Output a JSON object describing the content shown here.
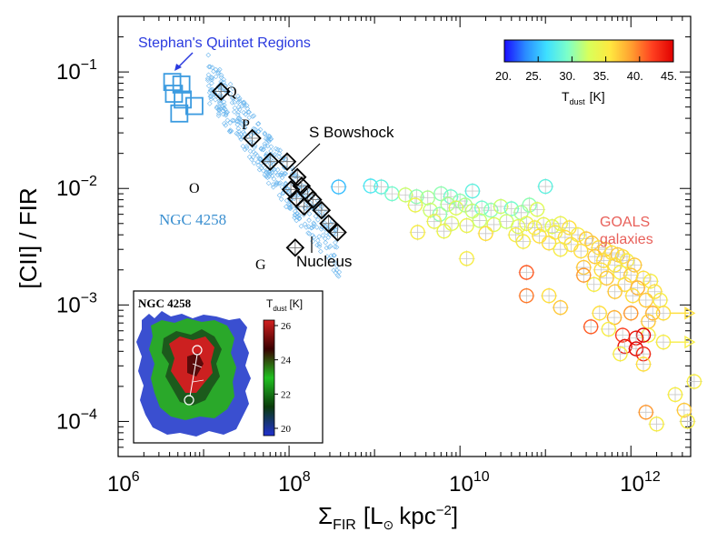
{
  "chart_data": {
    "type": "scatter",
    "x_scale": "log",
    "y_scale": "log",
    "xlim": [
      1000000,
      5000000000000
    ],
    "ylim": [
      5e-05,
      0.3
    ],
    "xlabel": "Σ",
    "xlabel_sub": "FIR",
    "xlabel_unit": "[L",
    "xlabel_unit_tail": "kpc",
    "xlabel_exp": "−2",
    "xlabel_close": "]",
    "ylabel": "[CII] / FIR",
    "x_ticks": [
      {
        "value": 1000000,
        "base": "10",
        "exp": "6"
      },
      {
        "value": 100000000,
        "base": "10",
        "exp": "8"
      },
      {
        "value": 10000000000,
        "base": "10",
        "exp": "10"
      },
      {
        "value": 1000000000000,
        "base": "10",
        "exp": "12"
      }
    ],
    "y_ticks": [
      {
        "value": 0.1,
        "base": "10",
        "exp": "−1"
      },
      {
        "value": 0.01,
        "base": "10",
        "exp": "−2"
      },
      {
        "value": 0.001,
        "base": "10",
        "exp": "−3"
      },
      {
        "value": 0.0001,
        "base": "10",
        "exp": "−4"
      }
    ],
    "colorbar": {
      "label": "T",
      "label_sub": "dust",
      "label_unit": "[K]",
      "range": [
        20,
        45
      ],
      "tick_labels": [
        "20.",
        "25.",
        "30.",
        "35.",
        "40.",
        "45."
      ],
      "colors": [
        "#1a0cff",
        "#2a8cff",
        "#3ee0ff",
        "#7dffc8",
        "#d9ff5a",
        "#ffe840",
        "#ffa030",
        "#ff4020",
        "#e00000"
      ]
    },
    "annotations": {
      "sq_title": "Stephan's Quintet Regions",
      "ngc_label": "NGC 4258",
      "goals_label_1": "GOALS",
      "goals_label_2": "galaxies",
      "bowshock_label": "S Bowshock",
      "nucleus_label": "Nucleus",
      "q_label": "Q",
      "p_label": "P",
      "o_label": "O",
      "g_label": "G"
    },
    "series": [
      {
        "name": "Stephan's Quintet Regions",
        "marker": "square",
        "color": "#3c9be0",
        "points": [
          [
            4300000,
            0.082
          ],
          [
            5500000,
            0.078
          ],
          [
            4500000,
            0.065
          ],
          [
            5700000,
            0.058
          ],
          [
            7800000,
            0.051
          ],
          [
            5200000,
            0.044
          ]
        ]
      },
      {
        "name": "NGC 4258 regions",
        "marker": "diamond",
        "color": "#000000",
        "points": [
          [
            16000000,
            0.068
          ],
          [
            37000000,
            0.027
          ],
          [
            60000000,
            0.017
          ],
          [
            95000000,
            0.017
          ],
          [
            125000000,
            0.0125
          ],
          [
            140000000,
            0.0105
          ],
          [
            105000000,
            0.0098
          ],
          [
            165000000,
            0.009
          ],
          [
            122000000,
            0.0082
          ],
          [
            190000000,
            0.008
          ],
          [
            150000000,
            0.007
          ],
          [
            240000000,
            0.0065
          ],
          [
            290000000,
            0.005
          ],
          [
            370000000,
            0.0042
          ],
          [
            118000000,
            0.0031
          ]
        ]
      },
      {
        "name": "GOALS galaxies",
        "marker": "circle",
        "points": [
          [
            380000000,
            0.0103,
            25
          ],
          [
            900000000,
            0.0105,
            27
          ],
          [
            1200000000,
            0.0103,
            28
          ],
          [
            1600000000,
            0.009,
            29
          ],
          [
            2300000000,
            0.0088,
            32
          ],
          [
            3100000000,
            0.0085,
            30
          ],
          [
            4200000000,
            0.0083,
            31
          ],
          [
            6000000000,
            0.009,
            30
          ],
          [
            7800000000,
            0.0085,
            29
          ],
          [
            14000000000,
            0.0095,
            28
          ],
          [
            10000000000,
            0.0078,
            30
          ],
          [
            3000000000,
            0.0072,
            34
          ],
          [
            4500000000,
            0.0065,
            32
          ],
          [
            5800000000,
            0.006,
            30
          ],
          [
            7200000000,
            0.0073,
            31
          ],
          [
            9000000000,
            0.0068,
            33
          ],
          [
            11500000000,
            0.0072,
            31
          ],
          [
            14000000000,
            0.0064,
            32
          ],
          [
            18000000000,
            0.0068,
            29
          ],
          [
            23000000000,
            0.0065,
            30
          ],
          [
            30000000000,
            0.007,
            32
          ],
          [
            40000000000,
            0.0067,
            29
          ],
          [
            52000000000,
            0.0062,
            31
          ],
          [
            65000000000,
            0.0072,
            30
          ],
          [
            80000000000,
            0.0066,
            33
          ],
          [
            100000000000,
            0.0104,
            28
          ],
          [
            5000000000,
            0.0052,
            34
          ],
          [
            8000000000,
            0.005,
            33
          ],
          [
            12000000000,
            0.0048,
            34
          ],
          [
            17000000000,
            0.0053,
            32
          ],
          [
            25000000000,
            0.0049,
            33
          ],
          [
            35000000000,
            0.0052,
            32
          ],
          [
            48000000000,
            0.0047,
            33
          ],
          [
            60000000000,
            0.005,
            34
          ],
          [
            75000000000,
            0.0046,
            35
          ],
          [
            95000000000,
            0.0049,
            34
          ],
          [
            120000000000,
            0.0047,
            33
          ],
          [
            150000000000,
            0.005,
            34
          ],
          [
            190000000000,
            0.0046,
            36
          ],
          [
            3200000000,
            0.0042,
            35
          ],
          [
            6500000000,
            0.0043,
            34
          ],
          [
            20000000000,
            0.0041,
            36
          ],
          [
            45000000000,
            0.004,
            35
          ],
          [
            85000000000,
            0.0039,
            36
          ],
          [
            130000000000,
            0.0042,
            35
          ],
          [
            170000000000,
            0.0038,
            36
          ],
          [
            240000000000,
            0.004,
            35
          ],
          [
            300000000000,
            0.0037,
            37
          ],
          [
            55000000000,
            0.0035,
            35
          ],
          [
            110000000000,
            0.0034,
            36
          ],
          [
            200000000000,
            0.0033,
            36
          ],
          [
            350000000000,
            0.0034,
            37
          ],
          [
            420000000000,
            0.0031,
            36
          ],
          [
            500000000000,
            0.003,
            37
          ],
          [
            150000000000,
            0.003,
            35
          ],
          [
            260000000000,
            0.0029,
            36
          ],
          [
            600000000000,
            0.0028,
            36
          ],
          [
            700000000000,
            0.0027,
            37
          ],
          [
            800000000000,
            0.0026,
            36
          ],
          [
            380000000000,
            0.0026,
            37
          ],
          [
            480000000000,
            0.0024,
            36
          ],
          [
            900000000000,
            0.0024,
            35
          ],
          [
            1100000000000,
            0.0022,
            37
          ],
          [
            650000000000,
            0.0022,
            36
          ],
          [
            12000000000,
            0.0025,
            35
          ],
          [
            280000000000,
            0.0021,
            37
          ],
          [
            450000000000,
            0.002,
            36
          ],
          [
            750000000000,
            0.0019,
            35
          ],
          [
            1000000000000,
            0.0018,
            37
          ],
          [
            1400000000000,
            0.0017,
            36
          ],
          [
            1700000000000,
            0.0016,
            35
          ],
          [
            520000000000,
            0.0017,
            37
          ],
          [
            850000000000,
            0.0015,
            36
          ],
          [
            1200000000000,
            0.0014,
            38
          ],
          [
            1900000000000,
            0.0013,
            36
          ],
          [
            370000000000,
            0.0015,
            35
          ],
          [
            650000000000,
            0.0013,
            37
          ],
          [
            1050000000000,
            0.0012,
            36
          ],
          [
            1500000000000,
            0.0011,
            37
          ],
          [
            2200000000000,
            0.0011,
            35
          ],
          [
            60000000000,
            0.0019,
            41
          ],
          [
            60000000000,
            0.0012,
            40
          ],
          [
            280000000000,
            0.0018,
            39
          ],
          [
            1800000000000,
            0.00085,
            38
          ],
          [
            110000000000,
            0.0012,
            36
          ],
          [
            150000000000,
            0.00095,
            37
          ],
          [
            430000000000,
            0.00085,
            36
          ],
          [
            640000000000,
            0.00078,
            38
          ],
          [
            1000000000000,
            0.00085,
            39
          ],
          [
            2400000000000,
            0.00085,
            36
          ],
          [
            340000000000,
            0.00065,
            41
          ],
          [
            550000000000,
            0.00062,
            35
          ],
          [
            1600000000000,
            0.00072,
            37
          ],
          [
            2400000000000,
            0.00048,
            35
          ],
          [
            1600000000000,
            0.00055,
            35
          ],
          [
            800000000000,
            0.00055,
            42
          ],
          [
            1400000000000,
            0.00055,
            45
          ],
          [
            1150000000000,
            0.00052,
            44
          ],
          [
            850000000000,
            0.00044,
            44
          ],
          [
            1150000000000,
            0.00042,
            45
          ],
          [
            1400000000000,
            0.00038,
            43
          ],
          [
            750000000000,
            0.00038,
            35
          ],
          [
            1400000000000,
            0.00031,
            36
          ],
          [
            5500000000000,
            0.00022,
            35
          ],
          [
            3300000000000,
            0.00017,
            35
          ],
          [
            1500000000000,
            0.00012,
            39
          ],
          [
            4200000000000,
            0.000125,
            37
          ],
          [
            2000000000000,
            9.5e-05,
            35
          ],
          [
            4600000000000,
            0.0001,
            35
          ]
        ]
      }
    ]
  },
  "inset": {
    "title": "NGC 4258",
    "label": "T",
    "label_sub": "dust",
    "label_unit": "[K]",
    "tick_labels": [
      "26",
      "24",
      "22",
      "20"
    ],
    "colors": [
      "#d42020",
      "#3a0000",
      "#20c020",
      "#0a3a0a",
      "#2030d0"
    ]
  }
}
